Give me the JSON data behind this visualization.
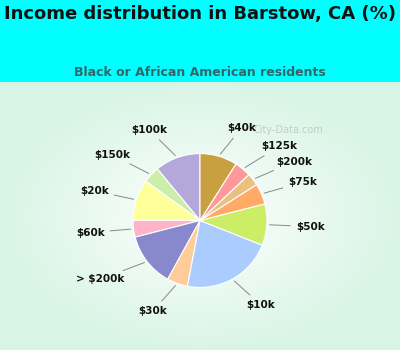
{
  "title": "Income distribution in Barstow, CA (%)",
  "subtitle": "Black or African American residents",
  "bg_color": "#00FFFF",
  "chart_bg_color": "#e8f5ee",
  "labels": [
    "$100k",
    "$150k",
    "$20k",
    "$60k",
    "> $200k",
    "$30k",
    "$10k",
    "$50k",
    "$75k",
    "$200k",
    "$125k",
    "$40k"
  ],
  "values": [
    11,
    4,
    10,
    4,
    13,
    5,
    22,
    10,
    5,
    3,
    4,
    9
  ],
  "colors": [
    "#b3a8d9",
    "#cceeaa",
    "#ffff99",
    "#ffb3c6",
    "#8888cc",
    "#ffcc99",
    "#aaccff",
    "#ccee66",
    "#ffaa66",
    "#e8c080",
    "#ff9999",
    "#c8a040"
  ],
  "startangle": 90,
  "title_fontsize": 13,
  "subtitle_fontsize": 9,
  "label_fontsize": 7.5,
  "title_color": "#111111",
  "subtitle_color": "#336666",
  "watermark": "City-Data.com",
  "watermark_color": "#aaaaaa"
}
